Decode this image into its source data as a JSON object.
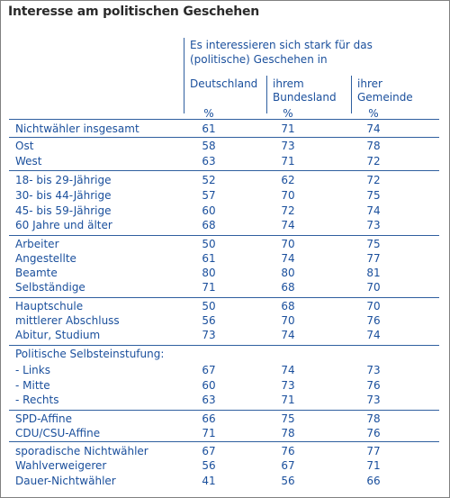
{
  "title": "Interesse am politischen Geschehen",
  "header": {
    "question_line1": "Es interessieren sich stark für das",
    "question_line2": "(politische) Geschehen in",
    "col1": "Deutschland",
    "col2_line1": "ihrem",
    "col2_line2": "Bundesland",
    "col3_line1": "ihrer",
    "col3_line2": "Gemeinde",
    "unit1": "%",
    "unit2": "%",
    "unit3": "%"
  },
  "rows": [
    {
      "label": "Nichtwähler insgesamt",
      "v1": "61",
      "v2": "71",
      "v3": "74"
    },
    {
      "label": "Ost",
      "v1": "58",
      "v2": "73",
      "v3": "78"
    },
    {
      "label": "West",
      "v1": "63",
      "v2": "71",
      "v3": "72"
    },
    {
      "label": "18- bis 29-Jährige",
      "v1": "52",
      "v2": "62",
      "v3": "72"
    },
    {
      "label": "30- bis 44-Jährige",
      "v1": "57",
      "v2": "70",
      "v3": "75"
    },
    {
      "label": "45- bis 59-Jährige",
      "v1": "60",
      "v2": "72",
      "v3": "74"
    },
    {
      "label": "60 Jahre und älter",
      "v1": "68",
      "v2": "74",
      "v3": "73"
    },
    {
      "label": "Arbeiter",
      "v1": "50",
      "v2": "70",
      "v3": "75"
    },
    {
      "label": "Angestellte",
      "v1": "61",
      "v2": "74",
      "v3": "77"
    },
    {
      "label": "Beamte",
      "v1": "80",
      "v2": "80",
      "v3": "81"
    },
    {
      "label": "Selbständige",
      "v1": "71",
      "v2": "68",
      "v3": "70"
    },
    {
      "label": "Hauptschule",
      "v1": "50",
      "v2": "68",
      "v3": "70"
    },
    {
      "label": "mittlerer Abschluss",
      "v1": "56",
      "v2": "70",
      "v3": "76"
    },
    {
      "label": "Abitur, Studium",
      "v1": "73",
      "v2": "74",
      "v3": "74"
    },
    {
      "label": "Politische Selbsteinstufung:",
      "v1": "",
      "v2": "",
      "v3": ""
    },
    {
      "label": "- Links",
      "v1": "67",
      "v2": "74",
      "v3": "73"
    },
    {
      "label": "- Mitte",
      "v1": "60",
      "v2": "73",
      "v3": "76"
    },
    {
      "label": "- Rechts",
      "v1": "63",
      "v2": "71",
      "v3": "73"
    },
    {
      "label": "SPD-Affine",
      "v1": "66",
      "v2": "75",
      "v3": "78"
    },
    {
      "label": "CDU/CSU-Affine",
      "v1": "71",
      "v2": "78",
      "v3": "76"
    },
    {
      "label": "sporadische Nichtwähler",
      "v1": "67",
      "v2": "76",
      "v3": "77"
    },
    {
      "label": "Wahlverweigerer",
      "v1": "56",
      "v2": "67",
      "v3": "71"
    },
    {
      "label": "Dauer-Nichtwähler",
      "v1": "41",
      "v2": "56",
      "v3": "66"
    }
  ]
}
